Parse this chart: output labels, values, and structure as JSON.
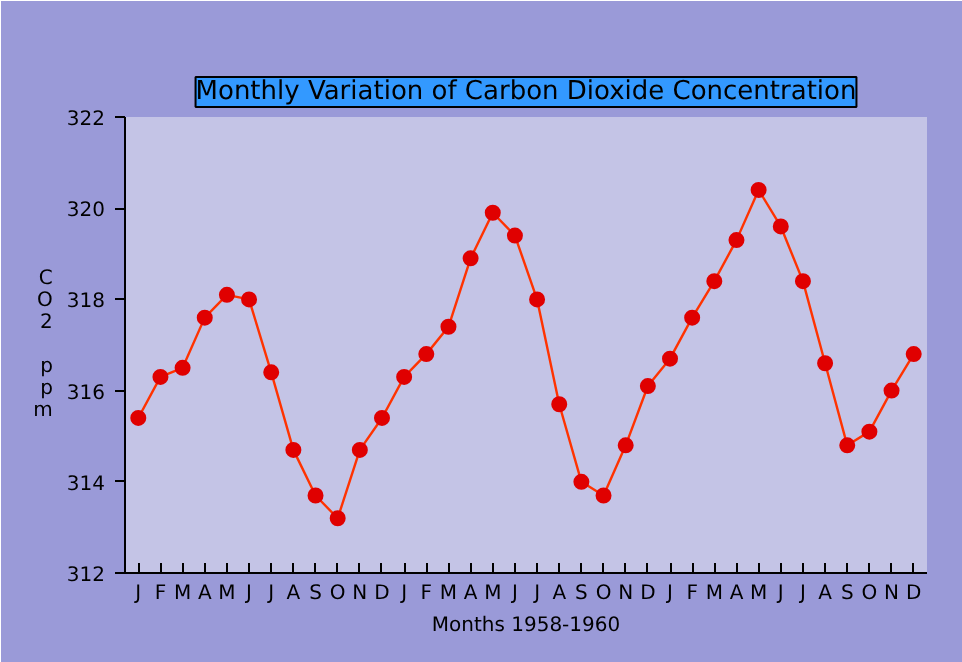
{
  "chart_data": {
    "type": "line",
    "title": "Monthly Variation of Carbon Dioxide Concentration",
    "xlabel": "Months 1958-1960",
    "ylabel": "CO2 ppm",
    "categories": [
      "J",
      "F",
      "M",
      "A",
      "M",
      "J",
      "J",
      "A",
      "S",
      "O",
      "N",
      "D",
      "J",
      "F",
      "M",
      "A",
      "M",
      "J",
      "J",
      "A",
      "S",
      "O",
      "N",
      "D",
      "J",
      "F",
      "M",
      "A",
      "M",
      "J",
      "J",
      "A",
      "S",
      "O",
      "N",
      "D"
    ],
    "series": [
      {
        "color": "#e00000",
        "values": [
          315.4,
          316.3,
          316.5,
          317.6,
          318.1,
          318.0,
          316.4,
          314.7,
          313.7,
          313.2,
          314.7,
          315.4,
          316.3,
          316.8,
          317.4,
          318.9,
          319.9,
          319.4,
          318.0,
          315.7,
          314.0,
          313.7,
          314.8,
          316.1,
          316.7,
          317.6,
          318.4,
          319.3,
          320.4,
          319.6,
          318.4,
          316.6,
          314.8,
          315.1,
          316.0,
          316.8
        ]
      }
    ],
    "ylim": [
      312,
      322
    ],
    "yticks": [
      312,
      314,
      316,
      318,
      320,
      322
    ],
    "grid": false,
    "marker": "circle",
    "line_style": "solid"
  }
}
